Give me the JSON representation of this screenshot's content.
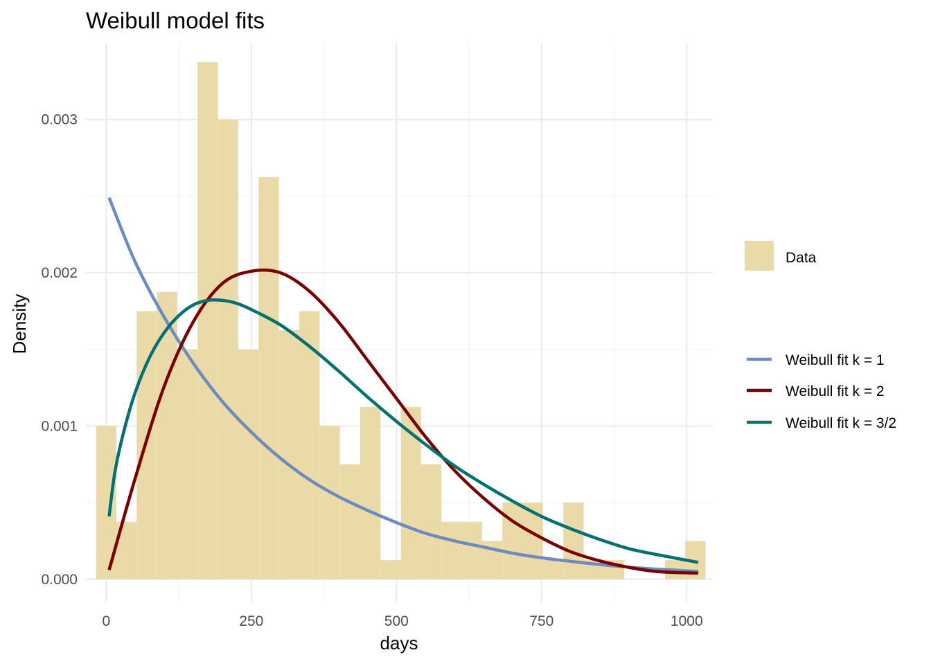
{
  "chart_data": {
    "type": "bar",
    "title": "Weibull model fits",
    "xlabel": "days",
    "ylabel": "Density",
    "xlim": [
      -35,
      1045
    ],
    "ylim": [
      -0.00015,
      0.0035
    ],
    "x_ticks": [
      0,
      250,
      500,
      750,
      1000
    ],
    "y_ticks": [
      0.0,
      0.001,
      0.002,
      0.003
    ],
    "x_tick_labels": [
      "0",
      "250",
      "500",
      "750",
      "1000"
    ],
    "y_tick_labels": [
      "0.000",
      "0.001",
      "0.002",
      "0.003"
    ],
    "grid": true,
    "legend_position": "right",
    "histogram": {
      "name": "Data",
      "color": "#eadaa8",
      "bin_width": 35,
      "bin_centers": [
        0,
        35,
        70,
        105,
        140,
        175,
        210,
        245,
        280,
        315,
        350,
        385,
        420,
        455,
        490,
        525,
        560,
        595,
        630,
        665,
        700,
        735,
        770,
        805,
        840,
        875,
        910,
        945,
        980,
        1015
      ],
      "values": [
        0.001,
        0.000375,
        0.00175,
        0.001875,
        0.0015,
        0.003375,
        0.003,
        0.0015,
        0.002625,
        0.001625,
        0.00175,
        0.001,
        0.00075,
        0.001125,
        0.000125,
        0.001125,
        0.00075,
        0.000375,
        0.000375,
        0.00025,
        0.0005,
        0.0005,
        0.000125,
        0.0005,
        0.000125,
        0.000125,
        0,
        0,
        0.000125,
        0.00025
      ]
    },
    "series": [
      {
        "name": "Weibull fit k = 1",
        "color": "#6b8cbf",
        "x": [
          5,
          50,
          100,
          150,
          200,
          250,
          300,
          350,
          400,
          450,
          500,
          550,
          600,
          650,
          700,
          750,
          800,
          850,
          900,
          950,
          1020
        ],
        "values": [
          0.00249,
          0.00207,
          0.00171,
          0.00141,
          0.00116,
          0.00096,
          0.00079,
          0.00065,
          0.00054,
          0.00045,
          0.00037,
          0.0003,
          0.00025,
          0.00021,
          0.00017,
          0.00014,
          0.000117,
          9.6e-05,
          7.9e-05,
          6.6e-05,
          5.1e-05
        ]
      },
      {
        "name": "Weibull fit k = 2",
        "color": "#7a0000",
        "x": [
          5,
          50,
          100,
          150,
          200,
          250,
          300,
          350,
          400,
          450,
          500,
          550,
          600,
          650,
          700,
          750,
          800,
          850,
          900,
          950,
          1020
        ],
        "values": [
          6e-05,
          0.00066,
          0.00126,
          0.00168,
          0.00193,
          0.00201,
          0.002,
          0.00188,
          0.00168,
          0.00143,
          0.00118,
          0.00093,
          0.00071,
          0.00053,
          0.00038,
          0.00027,
          0.00018,
          0.00012,
          7.8e-05,
          5e-05,
          4e-05
        ]
      },
      {
        "name": "Weibull fit k = 3/2",
        "color": "#007070",
        "x": [
          5,
          15,
          30,
          50,
          75,
          100,
          125,
          150,
          175,
          200,
          225,
          250,
          300,
          350,
          400,
          450,
          500,
          550,
          600,
          650,
          700,
          750,
          800,
          850,
          900,
          950,
          1020
        ],
        "values": [
          0.00041,
          0.0007,
          0.00096,
          0.00122,
          0.00145,
          0.00161,
          0.00172,
          0.00179,
          0.00182,
          0.00182,
          0.0018,
          0.00176,
          0.00166,
          0.00152,
          0.00136,
          0.00119,
          0.00103,
          0.00088,
          0.00074,
          0.00062,
          0.00051,
          0.00041,
          0.00033,
          0.00026,
          0.0002,
          0.00016,
          0.00011
        ]
      }
    ]
  }
}
